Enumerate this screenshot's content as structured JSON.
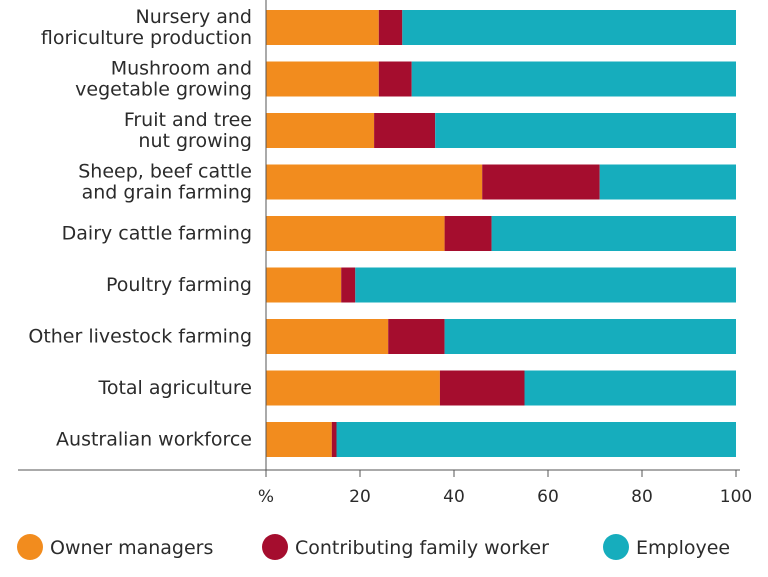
{
  "chart_data": {
    "type": "bar",
    "orientation": "horizontal",
    "stacked": true,
    "categories": [
      [
        "Nursery and",
        "floriculture production"
      ],
      [
        "Mushroom and",
        "vegetable growing"
      ],
      [
        "Fruit and tree",
        "nut growing"
      ],
      [
        "Sheep, beef cattle",
        "and grain farming"
      ],
      [
        "Dairy cattle farming"
      ],
      [
        "Poultry farming"
      ],
      [
        "Other livestock farming"
      ],
      [
        "Total agriculture"
      ],
      [
        "Australian workforce"
      ]
    ],
    "series": [
      {
        "name": "Owner managers",
        "color": "#f28c1e",
        "values": [
          24,
          24,
          23,
          46,
          38,
          16,
          26,
          37,
          14
        ]
      },
      {
        "name": "Contributing family worker",
        "color": "#a50d2e",
        "values": [
          5,
          7,
          13,
          25,
          10,
          3,
          12,
          18,
          1
        ]
      },
      {
        "name": "Employee",
        "color": "#16adbd",
        "values": [
          71,
          69,
          64,
          29,
          52,
          81,
          62,
          45,
          85
        ]
      }
    ],
    "x_axis": {
      "unit_label": "%",
      "ticks": [
        "20",
        "40",
        "60",
        "80",
        "100"
      ],
      "tick_values": [
        20,
        40,
        60,
        80,
        100
      ],
      "range": [
        0,
        100
      ]
    },
    "grid": false,
    "legend_position": "bottom"
  }
}
